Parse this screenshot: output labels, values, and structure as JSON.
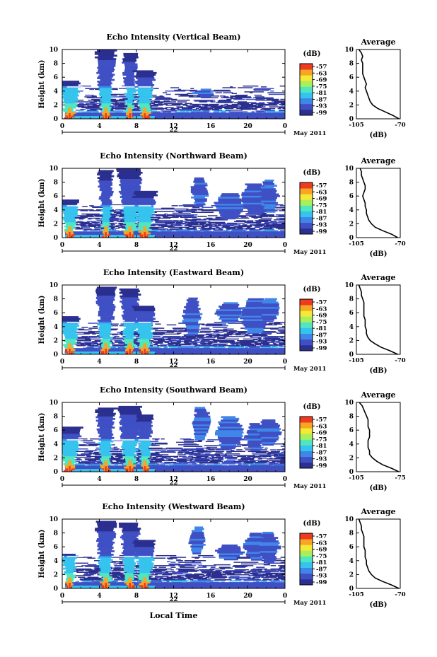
{
  "figure": {
    "date_label": "May 2011",
    "day_label": "22",
    "bottom_xlabel": "Local Time",
    "colorbar_unit": "(dB)",
    "colorbar_ticks": [
      "-57",
      "-63",
      "-69",
      "-75",
      "-81",
      "-87",
      "-93",
      "-99"
    ],
    "average_title": "Average",
    "average_xlabel": "(dB)"
  },
  "chart_data": [
    {
      "type": "heatmap",
      "title": "Echo Intensity (Vertical Beam)",
      "ylabel": "Height (km)",
      "xlim": [
        0,
        24
      ],
      "ylim": [
        0,
        10
      ],
      "xticks": [
        "0",
        "4",
        "8",
        "12",
        "16",
        "20",
        "0"
      ],
      "yticks": [
        "0",
        "2",
        "4",
        "6",
        "8",
        "10"
      ],
      "colorscale": [
        "#2b2f8f",
        "#3f4fc4",
        "#3f86e8",
        "#35c4ee",
        "#4fe6c1",
        "#a9ef5c",
        "#f3e936",
        "#f7a525",
        "#ee3a1f"
      ],
      "convective_cells_h": [
        [
          0.8,
          5.3
        ],
        [
          4.7,
          9.8
        ],
        [
          7.3,
          9.5
        ],
        [
          8.9,
          6.9
        ],
        [
          15.3,
          4.1
        ],
        [
          18.0,
          3.0
        ],
        [
          20.8,
          2.2
        ],
        [
          22.3,
          1.8
        ]
      ],
      "melting_layer_km": 4.6,
      "average_profile": {
        "title": "Average",
        "xlabel": "(dB)",
        "xlim": [
          -105,
          -70
        ],
        "xticks": [
          "-105",
          "-70"
        ],
        "x_values": [
          -71,
          -76,
          -82,
          -88,
          -92,
          -94,
          -95,
          -96,
          -97,
          -98,
          -97,
          -98,
          -99,
          -100,
          -100,
          -100,
          -100,
          -101,
          -100,
          -101,
          -103
        ],
        "heights_km": [
          0,
          0.5,
          1,
          1.5,
          2,
          2.5,
          3,
          3.5,
          4,
          4.5,
          5,
          5.5,
          6,
          6.5,
          7,
          7.5,
          8,
          8.5,
          9,
          9.5,
          10
        ]
      }
    },
    {
      "type": "heatmap",
      "title": "Echo Intensity (Northward Beam)",
      "ylabel": "Height (km)",
      "xlim": [
        0,
        24
      ],
      "ylim": [
        0,
        10
      ],
      "xticks": [
        "0",
        "4",
        "8",
        "12",
        "16",
        "20",
        "0"
      ],
      "yticks": [
        "0",
        "2",
        "4",
        "6",
        "8",
        "10"
      ],
      "convective_cells_h": [
        [
          0.8,
          5.5
        ],
        [
          4.7,
          9.6
        ],
        [
          7.3,
          9.8
        ],
        [
          8.9,
          6.6
        ],
        [
          14.8,
          8.6
        ],
        [
          18.0,
          6.4
        ],
        [
          20.8,
          7.8
        ],
        [
          22.3,
          8.2
        ]
      ],
      "melting_layer_km": 4.6,
      "average_profile": {
        "title": "Average",
        "xlabel": "(dB)",
        "xlim": [
          -105,
          -70
        ],
        "xticks": [
          "-105",
          "-70"
        ],
        "x_values": [
          -72,
          -77,
          -84,
          -90,
          -93,
          -95,
          -96,
          -97,
          -97,
          -98,
          -98,
          -99,
          -100,
          -99,
          -98,
          -98,
          -99,
          -100,
          -101,
          -101,
          -102
        ],
        "heights_km": [
          0,
          0.5,
          1,
          1.5,
          2,
          2.5,
          3,
          3.5,
          4,
          4.5,
          5,
          5.5,
          6,
          6.5,
          7,
          7.5,
          8,
          8.5,
          9,
          9.5,
          10
        ]
      }
    },
    {
      "type": "heatmap",
      "title": "Echo Intensity (Eastward Beam)",
      "ylabel": "Height (km)",
      "xlim": [
        0,
        24
      ],
      "ylim": [
        0,
        10
      ],
      "xticks": [
        "0",
        "4",
        "8",
        "12",
        "16",
        "20",
        "0"
      ],
      "yticks": [
        "0",
        "2",
        "4",
        "6",
        "8",
        "10"
      ],
      "convective_cells_h": [
        [
          0.8,
          5.4
        ],
        [
          4.7,
          9.7
        ],
        [
          7.3,
          9.5
        ],
        [
          8.9,
          7.0
        ],
        [
          14.0,
          8.0
        ],
        [
          18.0,
          7.3
        ],
        [
          20.8,
          7.9
        ],
        [
          22.3,
          8.0
        ]
      ],
      "melting_layer_km": 4.6,
      "average_profile": {
        "title": "Average",
        "xlabel": "(dB)",
        "xlim": [
          -105,
          -70
        ],
        "xticks": [
          "-105",
          "-70"
        ],
        "x_values": [
          -72,
          -78,
          -85,
          -90,
          -94,
          -96,
          -97,
          -97,
          -98,
          -98,
          -98,
          -99,
          -99,
          -99,
          -99,
          -99,
          -100,
          -101,
          -101,
          -102,
          -103
        ],
        "heights_km": [
          0,
          0.5,
          1,
          1.5,
          2,
          2.5,
          3,
          3.5,
          4,
          4.5,
          5,
          5.5,
          6,
          6.5,
          7,
          7.5,
          8,
          8.5,
          9,
          9.5,
          10
        ]
      }
    },
    {
      "type": "heatmap",
      "title": "Echo Intensity (Southward Beam)",
      "ylabel": "Height (km)",
      "xlim": [
        0,
        24
      ],
      "ylim": [
        0,
        10
      ],
      "xticks": [
        "0",
        "4",
        "8",
        "12",
        "16",
        "20",
        "0"
      ],
      "yticks": [
        "0",
        "2",
        "4",
        "6",
        "8",
        "10"
      ],
      "convective_cells_h": [
        [
          0.8,
          6.4
        ],
        [
          4.7,
          9.2
        ],
        [
          7.3,
          9.5
        ],
        [
          8.9,
          8.2
        ],
        [
          15.0,
          9.3
        ],
        [
          18.0,
          7.8
        ],
        [
          20.8,
          6.9
        ],
        [
          22.3,
          7.5
        ]
      ],
      "melting_layer_km": 4.6,
      "average_profile": {
        "title": "Average",
        "xlabel": "(dB)",
        "xlim": [
          -105,
          -75
        ],
        "xticks": [
          "-105",
          "-75"
        ],
        "x_values": [
          -76,
          -81,
          -87,
          -91,
          -94,
          -96,
          -96,
          -97,
          -97,
          -97,
          -96,
          -96,
          -96,
          -97,
          -97,
          -97,
          -98,
          -99,
          -100,
          -101,
          -103
        ],
        "heights_km": [
          0,
          0.5,
          1,
          1.5,
          2,
          2.5,
          3,
          3.5,
          4,
          4.5,
          5,
          5.5,
          6,
          6.5,
          7,
          7.5,
          8,
          8.5,
          9,
          9.5,
          10
        ]
      }
    },
    {
      "type": "heatmap",
      "title": "Echo Intensity (Westward Beam)",
      "ylabel": "Height (km)",
      "xlim": [
        0,
        24
      ],
      "ylim": [
        0,
        10
      ],
      "xticks": [
        "0",
        "4",
        "8",
        "12",
        "16",
        "20",
        "0"
      ],
      "yticks": [
        "0",
        "2",
        "4",
        "6",
        "8",
        "10"
      ],
      "convective_cells_h": [
        [
          0.8,
          5.0
        ],
        [
          4.7,
          9.6
        ],
        [
          7.3,
          9.5
        ],
        [
          8.9,
          6.8
        ],
        [
          14.6,
          8.7
        ],
        [
          18.0,
          6.2
        ],
        [
          20.8,
          7.9
        ],
        [
          22.3,
          8.0
        ]
      ],
      "melting_layer_km": 4.6,
      "average_profile": {
        "title": "Average",
        "xlabel": "(dB)",
        "xlim": [
          -105,
          -70
        ],
        "xticks": [
          "-105",
          "-70"
        ],
        "x_values": [
          -71,
          -77,
          -84,
          -90,
          -93,
          -95,
          -96,
          -97,
          -97,
          -98,
          -98,
          -98,
          -99,
          -99,
          -99,
          -99,
          -100,
          -101,
          -101,
          -102,
          -103
        ],
        "heights_km": [
          0,
          0.5,
          1,
          1.5,
          2,
          2.5,
          3,
          3.5,
          4,
          4.5,
          5,
          5.5,
          6,
          6.5,
          7,
          7.5,
          8,
          8.5,
          9,
          9.5,
          10
        ]
      }
    }
  ]
}
